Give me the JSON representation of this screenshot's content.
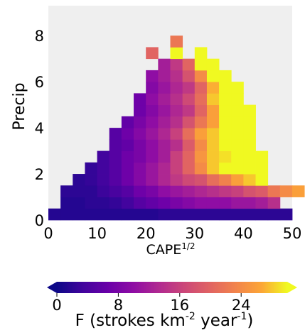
{
  "chart_data": {
    "type": "heatmap",
    "title": "",
    "xlabel": "CAPE",
    "xlabel_superscript": "1/2",
    "ylabel": "Precip",
    "xlim": [
      0,
      50
    ],
    "ylim": [
      0,
      9.3
    ],
    "x_ticks": [
      "0",
      "10",
      "20",
      "30",
      "40",
      "50"
    ],
    "y_ticks": [
      "0",
      "2",
      "4",
      "6",
      "8"
    ],
    "x_tick_values": [
      0,
      10,
      20,
      30,
      40,
      50
    ],
    "y_tick_values": [
      0,
      2,
      4,
      6,
      8
    ],
    "x_bin_width": 2.5,
    "y_bin_width": 0.5,
    "background_color": "#efefef",
    "colormap": "plasma",
    "colorbar": {
      "range": [
        0,
        30
      ],
      "ticks": [
        "0",
        "8",
        "16",
        "24"
      ],
      "tick_values": [
        0,
        8,
        16,
        24
      ],
      "label_prefix": "F (strokes km",
      "label_sup1": "-2",
      "label_mid": " year",
      "label_sup2": "-1",
      "label_suffix": ")",
      "extend": "both"
    },
    "rows": [
      {
        "y": 0,
        "x_start": 0,
        "values": [
          1.5,
          1.5,
          1.5,
          1.5,
          1.5,
          1.5,
          1.5,
          1.5,
          1.5,
          2,
          2,
          2,
          2,
          2,
          2,
          2,
          2,
          2,
          2,
          2
        ]
      },
      {
        "y": 0.5,
        "x_start": 2.5,
        "values": [
          1.5,
          1.5,
          2,
          2,
          2.5,
          3.5,
          5,
          6,
          7,
          8,
          9,
          10,
          10,
          10,
          11,
          11,
          12,
          14
        ]
      },
      {
        "y": 1,
        "x_start": 2.5,
        "values": [
          2,
          2,
          2,
          3,
          4,
          5,
          7,
          8,
          10,
          11,
          12,
          13,
          14,
          15,
          16,
          18,
          19,
          22,
          24,
          26
        ]
      },
      {
        "y": 1.5,
        "x_start": 5,
        "values": [
          2,
          2.5,
          3.5,
          5,
          7,
          9,
          11,
          13,
          15,
          17,
          18,
          21,
          23,
          26,
          28,
          30
        ]
      },
      {
        "y": 2,
        "x_start": 7.5,
        "values": [
          2.5,
          3.5,
          5,
          7,
          9,
          11,
          13,
          16,
          20,
          24,
          28,
          30,
          30,
          30,
          30
        ]
      },
      {
        "y": 2.5,
        "x_start": 10,
        "values": [
          3.5,
          5,
          7,
          8,
          10,
          12,
          16,
          20,
          25,
          28,
          29,
          30,
          30,
          30
        ]
      },
      {
        "y": 3,
        "x_start": 12.5,
        "values": [
          5,
          6,
          8,
          10,
          12,
          14,
          19,
          24,
          28,
          30,
          30,
          30
        ]
      },
      {
        "y": 3.5,
        "x_start": 12.5,
        "values": [
          5,
          7,
          9,
          11,
          13,
          16,
          21,
          26,
          28,
          30,
          30,
          30
        ]
      },
      {
        "y": 4,
        "x_start": 15,
        "values": [
          6,
          8,
          10,
          12,
          14,
          18,
          22,
          26,
          30,
          30,
          30
        ]
      },
      {
        "y": 4.5,
        "x_start": 17.5,
        "values": [
          7,
          9,
          11,
          13,
          15,
          20,
          26,
          30,
          30,
          30
        ]
      },
      {
        "y": 5,
        "x_start": 17.5,
        "values": [
          7,
          10,
          12,
          14,
          17,
          21,
          28,
          30,
          30
        ]
      },
      {
        "y": 5.5,
        "x_start": 20,
        "values": [
          9,
          11,
          13,
          15,
          20,
          27,
          30,
          30
        ]
      },
      {
        "y": 6,
        "x_start": 20,
        "values": [
          10,
          12,
          14,
          18,
          24,
          30,
          30
        ]
      },
      {
        "y": 6.5,
        "x_start": 22.5,
        "values": [
          12,
          15,
          20,
          30,
          30
        ]
      },
      {
        "y": 7,
        "x_start": 20,
        "values": [
          20,
          null,
          30,
          null,
          30
        ]
      },
      {
        "y": 7.5,
        "x_start": 25,
        "values": [
          22
        ]
      }
    ]
  }
}
